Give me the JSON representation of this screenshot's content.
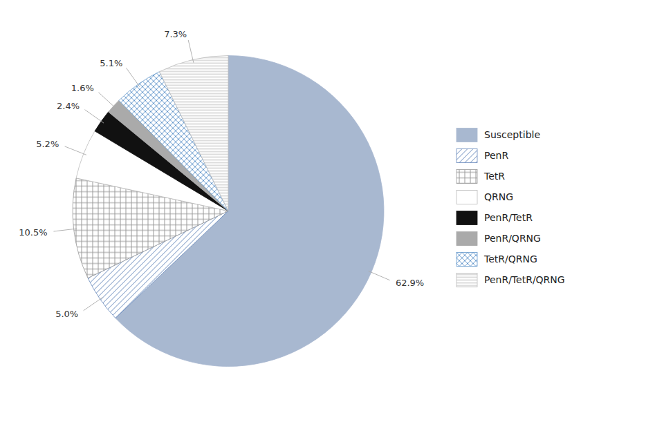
{
  "chart_data": {
    "type": "pie",
    "categories": [
      "Susceptible",
      "PenR",
      "TetR",
      "QRNG",
      "PenR/TetR",
      "PenR/QRNG",
      "TetR/QRNG",
      "PenR/TetR/QRNG"
    ],
    "values": [
      62.9,
      5.0,
      10.5,
      5.2,
      2.4,
      1.6,
      5.1,
      7.3
    ],
    "value_labels": [
      "62.9%",
      "5.0%",
      "10.5%",
      "5.2%",
      "2.4%",
      "1.6%",
      "5.1%",
      "7.3%"
    ],
    "colors": [
      "#a8b8d0",
      "white",
      "white",
      "white",
      "#111111",
      "#aaaaaa",
      "white",
      "white"
    ],
    "data_labels": true,
    "legend": "right"
  }
}
